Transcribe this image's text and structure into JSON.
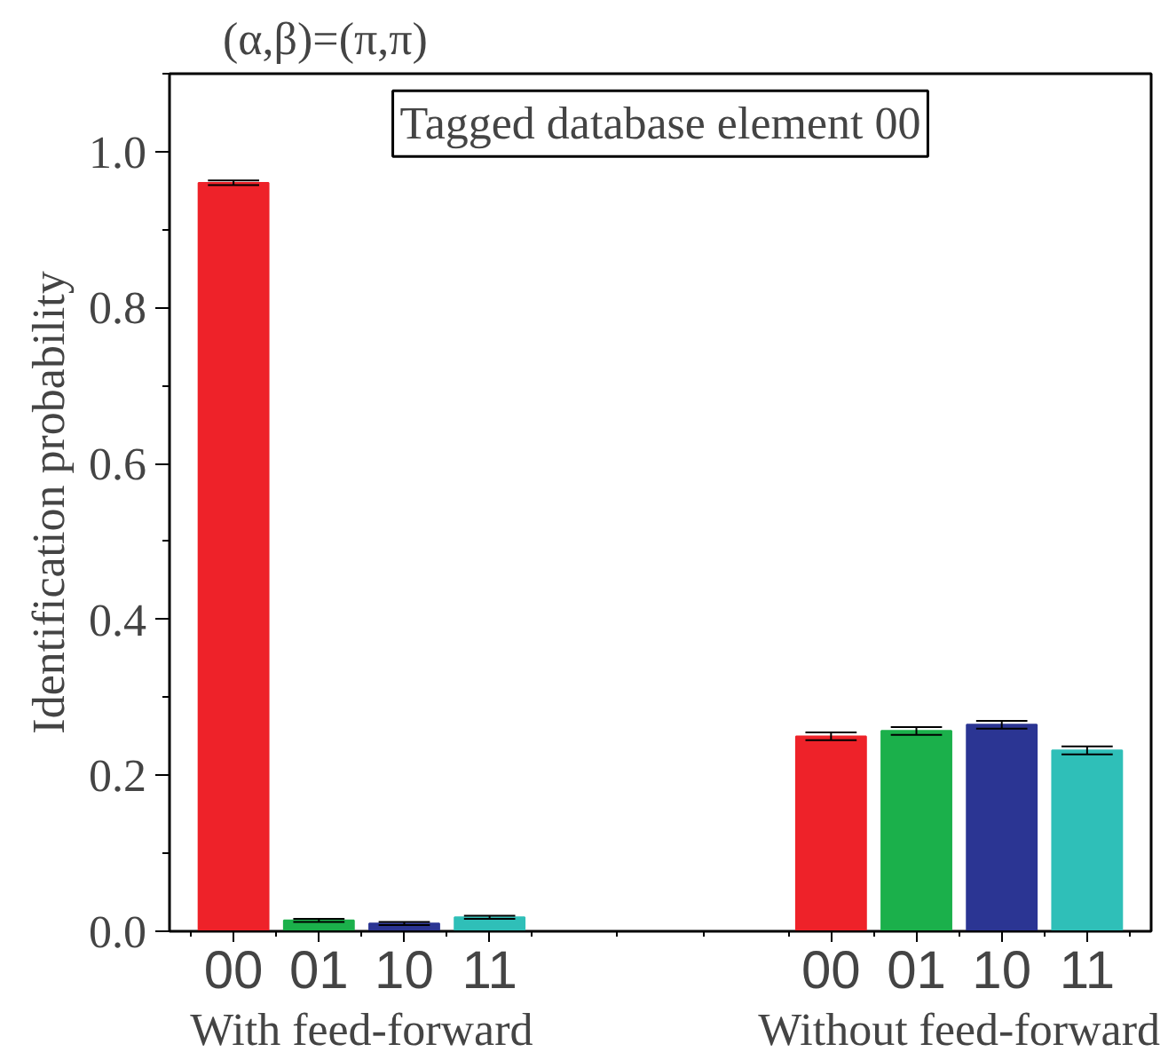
{
  "chart_data": {
    "type": "bar",
    "title": "(α,β)=(π,π)",
    "ylabel": "Identification probability",
    "categories": [
      "00",
      "01",
      "10",
      "11",
      null,
      null,
      null,
      "00",
      "01",
      "10",
      "11"
    ],
    "values": [
      0.96,
      0.014,
      0.01,
      0.018,
      null,
      null,
      null,
      0.25,
      0.257,
      0.265,
      0.232
    ],
    "errors": [
      0.003,
      0.002,
      0.002,
      0.002,
      null,
      null,
      null,
      0.005,
      0.005,
      0.005,
      0.005
    ],
    "colors": [
      "#ee2229",
      "#1bb04b",
      "#2b3593",
      "#2fbfb8",
      null,
      null,
      null,
      "#ee2229",
      "#1bb04b",
      "#2b3593",
      "#2fbfb8"
    ],
    "annotations": [
      "Tagged database element 00",
      "With feed-forward",
      "Without feed-forward"
    ],
    "ylim": [
      0,
      1.1
    ],
    "yticks": [
      {
        "value": 0,
        "label": "0.0"
      },
      0.2,
      0.4,
      0.6,
      0.8,
      {
        "value": 1,
        "label": "1.0"
      }
    ],
    "grid": false
  }
}
